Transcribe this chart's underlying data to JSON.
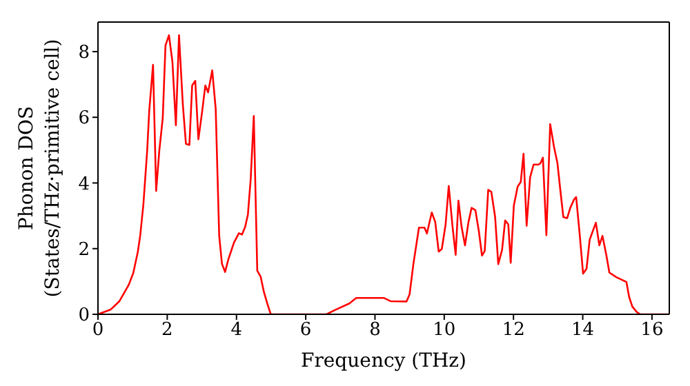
{
  "chart_data": {
    "type": "line",
    "xlabel": "Frequency (THz)",
    "ylabel": "Phonon DOS\n(States/THz·primitive cell)",
    "xlim": [
      0,
      16.5
    ],
    "xticks": [
      0,
      2,
      4,
      6,
      8,
      10,
      12,
      14,
      16
    ],
    "ylim": [
      0,
      8.9
    ],
    "yticks": [
      0,
      2,
      4,
      6,
      8
    ],
    "legend": false,
    "marker": "none",
    "line_style": "solid",
    "x": [
      0,
      0.36,
      0.62,
      0.89,
      1.02,
      1.15,
      1.22,
      1.31,
      1.42,
      1.48,
      1.59,
      1.68,
      1.77,
      1.87,
      1.95,
      2.05,
      2.15,
      2.25,
      2.34,
      2.45,
      2.54,
      2.64,
      2.72,
      2.81,
      2.9,
      3.01,
      3.1,
      3.18,
      3.3,
      3.4,
      3.5,
      3.58,
      3.67,
      3.77,
      3.93,
      4.07,
      4.16,
      4.25,
      4.33,
      4.41,
      4.5,
      4.6,
      4.7,
      4.79,
      4.89,
      4.99,
      6.6,
      6.86,
      7.26,
      7.46,
      8.25,
      8.45,
      8.91,
      9.0,
      9.11,
      9.27,
      9.43,
      9.5,
      9.64,
      9.74,
      9.84,
      9.93,
      10.04,
      10.13,
      10.24,
      10.33,
      10.41,
      10.5,
      10.6,
      10.7,
      10.79,
      10.9,
      11.0,
      11.09,
      11.17,
      11.27,
      11.36,
      11.47,
      11.56,
      11.67,
      11.76,
      11.85,
      11.92,
      12.01,
      12.12,
      12.21,
      12.29,
      12.38,
      12.48,
      12.58,
      12.72,
      12.78,
      12.85,
      12.95,
      13.06,
      13.17,
      13.27,
      13.35,
      13.44,
      13.55,
      13.64,
      13.75,
      13.81,
      13.91,
      14.01,
      14.11,
      14.2,
      14.3,
      14.38,
      14.48,
      14.57,
      14.68,
      14.77,
      14.97,
      15.17,
      15.26,
      15.34,
      15.43,
      15.56,
      15.66,
      16.5
    ],
    "series": [
      {
        "color": "#ff0000",
        "values": [
          0,
          0.14,
          0.4,
          0.9,
          1.26,
          1.9,
          2.4,
          3.33,
          4.97,
          6.19,
          7.6,
          3.76,
          4.97,
          5.97,
          8.19,
          8.5,
          7.69,
          5.76,
          8.5,
          6.4,
          5.19,
          5.16,
          6.97,
          7.11,
          5.33,
          6.19,
          6.97,
          6.76,
          7.43,
          6.26,
          2.4,
          1.54,
          1.29,
          1.69,
          2.19,
          2.47,
          2.43,
          2.66,
          3.04,
          4.11,
          6.04,
          1.33,
          1.14,
          0.69,
          0.33,
          0,
          0,
          0.14,
          0.33,
          0.5,
          0.5,
          0.4,
          0.39,
          0.61,
          1.54,
          2.64,
          2.64,
          2.46,
          3.1,
          2.81,
          1.91,
          1.99,
          2.74,
          3.91,
          2.67,
          1.81,
          3.46,
          2.67,
          2.1,
          2.81,
          3.24,
          3.17,
          2.53,
          1.79,
          1.93,
          3.79,
          3.73,
          2.96,
          1.53,
          1.96,
          2.86,
          2.74,
          1.57,
          3.31,
          3.89,
          4.03,
          4.89,
          2.7,
          4.17,
          4.56,
          4.56,
          4.6,
          4.77,
          2.41,
          5.79,
          5.1,
          4.6,
          3.81,
          2.96,
          2.93,
          3.24,
          3.5,
          3.57,
          2.46,
          1.24,
          1.39,
          2.27,
          2.56,
          2.79,
          2.1,
          2.39,
          1.81,
          1.27,
          1.13,
          1.03,
          0.99,
          0.53,
          0.24,
          0.07,
          0,
          0
        ]
      }
    ]
  }
}
